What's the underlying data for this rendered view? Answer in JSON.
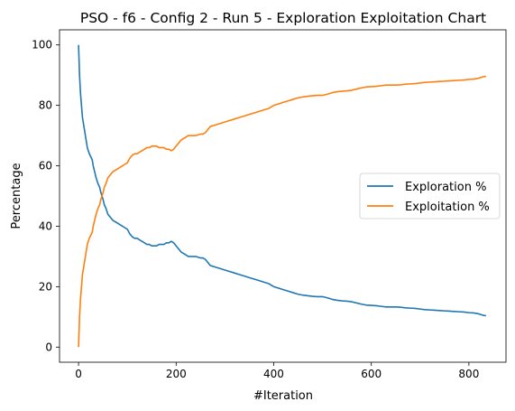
{
  "chart_data": {
    "type": "line",
    "title": "PSO - f6 - Config 2 - Run 5 - Exploration Exploitation Chart",
    "xlabel": "#Iteration",
    "ylabel": "Percentage",
    "xlim": [
      -39,
      876
    ],
    "ylim": [
      -5,
      105
    ],
    "xticks": [
      0,
      200,
      400,
      600,
      800
    ],
    "yticks": [
      0,
      20,
      40,
      60,
      80,
      100
    ],
    "grid": false,
    "legend_position": "center-right",
    "series": [
      {
        "name": "Exploration %",
        "color": "#1f77b4",
        "points": [
          [
            0,
            100
          ],
          [
            2,
            90
          ],
          [
            4,
            84
          ],
          [
            6,
            80
          ],
          [
            8,
            76
          ],
          [
            10,
            74
          ],
          [
            12,
            72
          ],
          [
            14,
            70
          ],
          [
            16,
            68
          ],
          [
            18,
            66
          ],
          [
            20,
            65
          ],
          [
            22,
            64
          ],
          [
            25,
            63
          ],
          [
            28,
            62
          ],
          [
            30,
            60
          ],
          [
            33,
            58
          ],
          [
            36,
            56
          ],
          [
            40,
            54
          ],
          [
            43,
            53
          ],
          [
            46,
            51
          ],
          [
            50,
            49
          ],
          [
            53,
            47
          ],
          [
            56,
            46
          ],
          [
            60,
            44
          ],
          [
            65,
            43
          ],
          [
            70,
            42
          ],
          [
            75,
            41.5
          ],
          [
            80,
            41
          ],
          [
            85,
            40.5
          ],
          [
            90,
            40
          ],
          [
            95,
            39.5
          ],
          [
            100,
            39
          ],
          [
            105,
            37.5
          ],
          [
            110,
            36.5
          ],
          [
            115,
            36
          ],
          [
            120,
            36
          ],
          [
            125,
            35.5
          ],
          [
            130,
            35
          ],
          [
            135,
            34.5
          ],
          [
            140,
            34
          ],
          [
            145,
            34
          ],
          [
            150,
            33.5
          ],
          [
            155,
            33.5
          ],
          [
            160,
            33.5
          ],
          [
            165,
            34
          ],
          [
            170,
            34
          ],
          [
            175,
            34
          ],
          [
            180,
            34.5
          ],
          [
            185,
            34.5
          ],
          [
            190,
            35
          ],
          [
            195,
            34.5
          ],
          [
            200,
            33.5
          ],
          [
            205,
            32.5
          ],
          [
            210,
            31.5
          ],
          [
            215,
            31
          ],
          [
            220,
            30.5
          ],
          [
            225,
            30
          ],
          [
            230,
            30
          ],
          [
            240,
            30
          ],
          [
            250,
            29.5
          ],
          [
            255,
            29.5
          ],
          [
            260,
            29
          ],
          [
            265,
            28
          ],
          [
            270,
            27
          ],
          [
            280,
            26.5
          ],
          [
            290,
            26
          ],
          [
            300,
            25.5
          ],
          [
            310,
            25
          ],
          [
            320,
            24.5
          ],
          [
            330,
            24
          ],
          [
            340,
            23.5
          ],
          [
            350,
            23
          ],
          [
            360,
            22.5
          ],
          [
            370,
            22
          ],
          [
            380,
            21.5
          ],
          [
            390,
            21
          ],
          [
            400,
            20
          ],
          [
            410,
            19.5
          ],
          [
            420,
            19
          ],
          [
            430,
            18.5
          ],
          [
            440,
            18
          ],
          [
            450,
            17.5
          ],
          [
            460,
            17.2
          ],
          [
            470,
            17
          ],
          [
            480,
            16.8
          ],
          [
            490,
            16.7
          ],
          [
            500,
            16.7
          ],
          [
            510,
            16.3
          ],
          [
            520,
            15.8
          ],
          [
            530,
            15.5
          ],
          [
            540,
            15.3
          ],
          [
            550,
            15.2
          ],
          [
            560,
            15
          ],
          [
            570,
            14.6
          ],
          [
            580,
            14.2
          ],
          [
            590,
            13.9
          ],
          [
            600,
            13.8
          ],
          [
            610,
            13.7
          ],
          [
            620,
            13.5
          ],
          [
            630,
            13.3
          ],
          [
            640,
            13.3
          ],
          [
            650,
            13.3
          ],
          [
            660,
            13.2
          ],
          [
            670,
            13
          ],
          [
            680,
            12.9
          ],
          [
            690,
            12.8
          ],
          [
            700,
            12.6
          ],
          [
            710,
            12.4
          ],
          [
            720,
            12.3
          ],
          [
            730,
            12.2
          ],
          [
            740,
            12.1
          ],
          [
            750,
            12
          ],
          [
            760,
            11.9
          ],
          [
            770,
            11.8
          ],
          [
            780,
            11.7
          ],
          [
            790,
            11.6
          ],
          [
            800,
            11.4
          ],
          [
            810,
            11.3
          ],
          [
            820,
            11
          ],
          [
            830,
            10.5
          ],
          [
            835,
            10.4
          ]
        ]
      },
      {
        "name": "Exploitation %",
        "color": "#ff7f0e",
        "points": [
          [
            0,
            0
          ],
          [
            2,
            10
          ],
          [
            4,
            16
          ],
          [
            6,
            20
          ],
          [
            8,
            24
          ],
          [
            10,
            26
          ],
          [
            12,
            28
          ],
          [
            14,
            30
          ],
          [
            16,
            32
          ],
          [
            18,
            34
          ],
          [
            20,
            35
          ],
          [
            22,
            36
          ],
          [
            25,
            37
          ],
          [
            28,
            38
          ],
          [
            30,
            40
          ],
          [
            33,
            42
          ],
          [
            36,
            44
          ],
          [
            40,
            46
          ],
          [
            43,
            47
          ],
          [
            46,
            49
          ],
          [
            50,
            51
          ],
          [
            53,
            53
          ],
          [
            56,
            54
          ],
          [
            60,
            56
          ],
          [
            65,
            57
          ],
          [
            70,
            58
          ],
          [
            75,
            58.5
          ],
          [
            80,
            59
          ],
          [
            85,
            59.5
          ],
          [
            90,
            60
          ],
          [
            95,
            60.5
          ],
          [
            100,
            61
          ],
          [
            105,
            62.5
          ],
          [
            110,
            63.5
          ],
          [
            115,
            64
          ],
          [
            120,
            64
          ],
          [
            125,
            64.5
          ],
          [
            130,
            65
          ],
          [
            135,
            65.5
          ],
          [
            140,
            66
          ],
          [
            145,
            66
          ],
          [
            150,
            66.5
          ],
          [
            155,
            66.5
          ],
          [
            160,
            66.5
          ],
          [
            165,
            66
          ],
          [
            170,
            66
          ],
          [
            175,
            66
          ],
          [
            180,
            65.5
          ],
          [
            185,
            65.5
          ],
          [
            190,
            65
          ],
          [
            195,
            65.5
          ],
          [
            200,
            66.5
          ],
          [
            205,
            67.5
          ],
          [
            210,
            68.5
          ],
          [
            215,
            69
          ],
          [
            220,
            69.5
          ],
          [
            225,
            70
          ],
          [
            230,
            70
          ],
          [
            240,
            70
          ],
          [
            250,
            70.5
          ],
          [
            255,
            70.5
          ],
          [
            260,
            71
          ],
          [
            265,
            72
          ],
          [
            270,
            73
          ],
          [
            280,
            73.5
          ],
          [
            290,
            74
          ],
          [
            300,
            74.5
          ],
          [
            310,
            75
          ],
          [
            320,
            75.5
          ],
          [
            330,
            76
          ],
          [
            340,
            76.5
          ],
          [
            350,
            77
          ],
          [
            360,
            77.5
          ],
          [
            370,
            78
          ],
          [
            380,
            78.5
          ],
          [
            390,
            79
          ],
          [
            400,
            80
          ],
          [
            410,
            80.5
          ],
          [
            420,
            81
          ],
          [
            430,
            81.5
          ],
          [
            440,
            82
          ],
          [
            450,
            82.5
          ],
          [
            460,
            82.8
          ],
          [
            470,
            83
          ],
          [
            480,
            83.2
          ],
          [
            490,
            83.3
          ],
          [
            500,
            83.3
          ],
          [
            510,
            83.7
          ],
          [
            520,
            84.2
          ],
          [
            530,
            84.5
          ],
          [
            540,
            84.7
          ],
          [
            550,
            84.8
          ],
          [
            560,
            85
          ],
          [
            570,
            85.4
          ],
          [
            580,
            85.8
          ],
          [
            590,
            86.1
          ],
          [
            600,
            86.2
          ],
          [
            610,
            86.3
          ],
          [
            620,
            86.5
          ],
          [
            630,
            86.7
          ],
          [
            640,
            86.7
          ],
          [
            650,
            86.7
          ],
          [
            660,
            86.8
          ],
          [
            670,
            87
          ],
          [
            680,
            87.1
          ],
          [
            690,
            87.2
          ],
          [
            700,
            87.4
          ],
          [
            710,
            87.6
          ],
          [
            720,
            87.7
          ],
          [
            730,
            87.8
          ],
          [
            740,
            87.9
          ],
          [
            750,
            88
          ],
          [
            760,
            88.1
          ],
          [
            770,
            88.2
          ],
          [
            780,
            88.3
          ],
          [
            790,
            88.4
          ],
          [
            800,
            88.6
          ],
          [
            810,
            88.7
          ],
          [
            820,
            89
          ],
          [
            830,
            89.5
          ],
          [
            835,
            89.6
          ]
        ]
      }
    ]
  }
}
